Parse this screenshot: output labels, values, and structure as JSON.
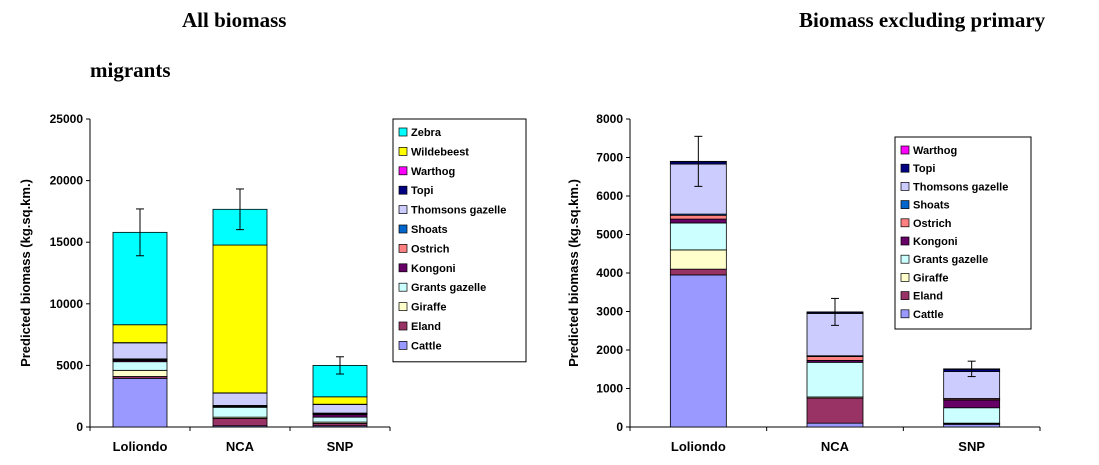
{
  "page": {
    "heading_left_line1": "All biomass",
    "heading_left_line2": "migrants",
    "heading_right": "Biomass excluding primary"
  },
  "colors": {
    "Cattle": "#9999ff",
    "Eland": "#993366",
    "Giraffe": "#ffffcc",
    "Grants gazelle": "#ccffff",
    "Kongoni": "#660066",
    "Ostrich": "#ff8080",
    "Shoats": "#0066cc",
    "Thomsons gazelle": "#ccccff",
    "Topi": "#000080",
    "Warthog": "#ff00ff",
    "Wildebeest": "#ffff00",
    "Zebra": "#00ffff"
  },
  "chart_data": [
    {
      "type": "bar",
      "stacked": true,
      "title": "",
      "xlabel": "",
      "ylabel": "Predicted biomass (kg.sq.km.)",
      "categories": [
        "Loliondo",
        "NCA",
        "SNP"
      ],
      "ylim": [
        0,
        25000
      ],
      "yticks": [
        0,
        5000,
        10000,
        15000,
        20000,
        25000
      ],
      "legend_position": "right",
      "legend_order": [
        "Zebra",
        "Wildebeest",
        "Warthog",
        "Topi",
        "Thomsons gazelle",
        "Shoats",
        "Ostrich",
        "Kongoni",
        "Grants gazelle",
        "Giraffe",
        "Eland",
        "Cattle"
      ],
      "series": [
        {
          "name": "Cattle",
          "values": [
            3950,
            100,
            100
          ]
        },
        {
          "name": "Eland",
          "values": [
            150,
            600,
            200
          ]
        },
        {
          "name": "Giraffe",
          "values": [
            500,
            100,
            100
          ]
        },
        {
          "name": "Grants gazelle",
          "values": [
            700,
            800,
            400
          ]
        },
        {
          "name": "Kongoni",
          "values": [
            100,
            50,
            200
          ]
        },
        {
          "name": "Ostrich",
          "values": [
            50,
            50,
            50
          ]
        },
        {
          "name": "Shoats",
          "values": [
            30,
            30,
            30
          ]
        },
        {
          "name": "Topi",
          "values": [
            50,
            20,
            50
          ]
        },
        {
          "name": "Thomsons gazelle",
          "values": [
            1300,
            1000,
            700
          ]
        },
        {
          "name": "Warthog",
          "values": [
            20,
            20,
            20
          ]
        },
        {
          "name": "Wildebeest",
          "values": [
            1450,
            12000,
            600
          ]
        },
        {
          "name": "Zebra",
          "values": [
            7500,
            2900,
            2550
          ]
        }
      ],
      "error": [
        1900,
        1650,
        700
      ]
    },
    {
      "type": "bar",
      "stacked": true,
      "title": "",
      "xlabel": "",
      "ylabel": "Predicted biomass (kg.sq.km.)",
      "categories": [
        "Loliondo",
        "NCA",
        "SNP"
      ],
      "ylim": [
        0,
        8000
      ],
      "yticks": [
        0,
        1000,
        2000,
        3000,
        4000,
        5000,
        6000,
        7000,
        8000
      ],
      "legend_position": "right",
      "legend_order": [
        "Warthog",
        "Topi",
        "Thomsons gazelle",
        "Shoats",
        "Ostrich",
        "Kongoni",
        "Grants gazelle",
        "Giraffe",
        "Eland",
        "Cattle"
      ],
      "series": [
        {
          "name": "Cattle",
          "values": [
            3950,
            100,
            70
          ]
        },
        {
          "name": "Eland",
          "values": [
            150,
            650,
            20
          ]
        },
        {
          "name": "Giraffe",
          "values": [
            500,
            30,
            10
          ]
        },
        {
          "name": "Grants gazelle",
          "values": [
            700,
            900,
            400
          ]
        },
        {
          "name": "Kongoni",
          "values": [
            100,
            50,
            200
          ]
        },
        {
          "name": "Ostrich",
          "values": [
            100,
            100,
            30
          ]
        },
        {
          "name": "Shoats",
          "values": [
            30,
            20,
            10
          ]
        },
        {
          "name": "Thomsons gazelle",
          "values": [
            1300,
            1100,
            700
          ]
        },
        {
          "name": "Topi",
          "values": [
            60,
            30,
            60
          ]
        },
        {
          "name": "Warthog",
          "values": [
            10,
            10,
            10
          ]
        }
      ],
      "error": [
        650,
        350,
        200
      ]
    }
  ]
}
